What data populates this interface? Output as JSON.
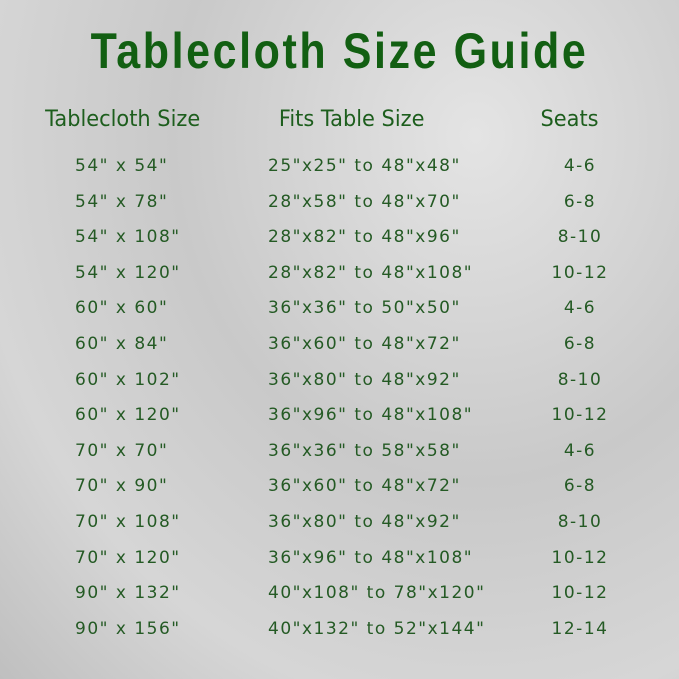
{
  "title": "Tablecloth Size Guide",
  "headers": {
    "size": "Tablecloth Size",
    "fits": "Fits Table Size",
    "seats": "Seats"
  },
  "rows": [
    {
      "size": "54\" x 54\"",
      "fits": "25\"x25\" to 48\"x48\"",
      "seats": "4-6"
    },
    {
      "size": "54\" x 78\"",
      "fits": "28\"x58\" to 48\"x70\"",
      "seats": "6-8"
    },
    {
      "size": "54\" x 108\"",
      "fits": "28\"x82\" to 48\"x96\"",
      "seats": "8-10"
    },
    {
      "size": "54\" x 120\"",
      "fits": "28\"x82\" to 48\"x108\"",
      "seats": "10-12"
    },
    {
      "size": "60\" x 60\"",
      "fits": "36\"x36\" to 50\"x50\"",
      "seats": "4-6"
    },
    {
      "size": "60\" x 84\"",
      "fits": "36\"x60\" to 48\"x72\"",
      "seats": "6-8"
    },
    {
      "size": "60\" x 102\"",
      "fits": "36\"x80\" to 48\"x92\"",
      "seats": "8-10"
    },
    {
      "size": "60\" x 120\"",
      "fits": "36\"x96\" to 48\"x108\"",
      "seats": "10-12"
    },
    {
      "size": "70\" x 70\"",
      "fits": "36\"x36\" to 58\"x58\"",
      "seats": "4-6"
    },
    {
      "size": "70\" x 90\"",
      "fits": "36\"x60\" to 48\"x72\"",
      "seats": "6-8"
    },
    {
      "size": "70\" x 108\"",
      "fits": "36\"x80\" to 48\"x92\"",
      "seats": "8-10"
    },
    {
      "size": "70\" x 120\"",
      "fits": "36\"x96\" to 48\"x108\"",
      "seats": "10-12"
    },
    {
      "size": "90\" x 132\"",
      "fits": "40\"x108\" to 78\"x120\"",
      "seats": "10-12"
    },
    {
      "size": "90\" x 156\"",
      "fits": "40\"x132\" to 52\"x144\"",
      "seats": "12-14"
    }
  ]
}
